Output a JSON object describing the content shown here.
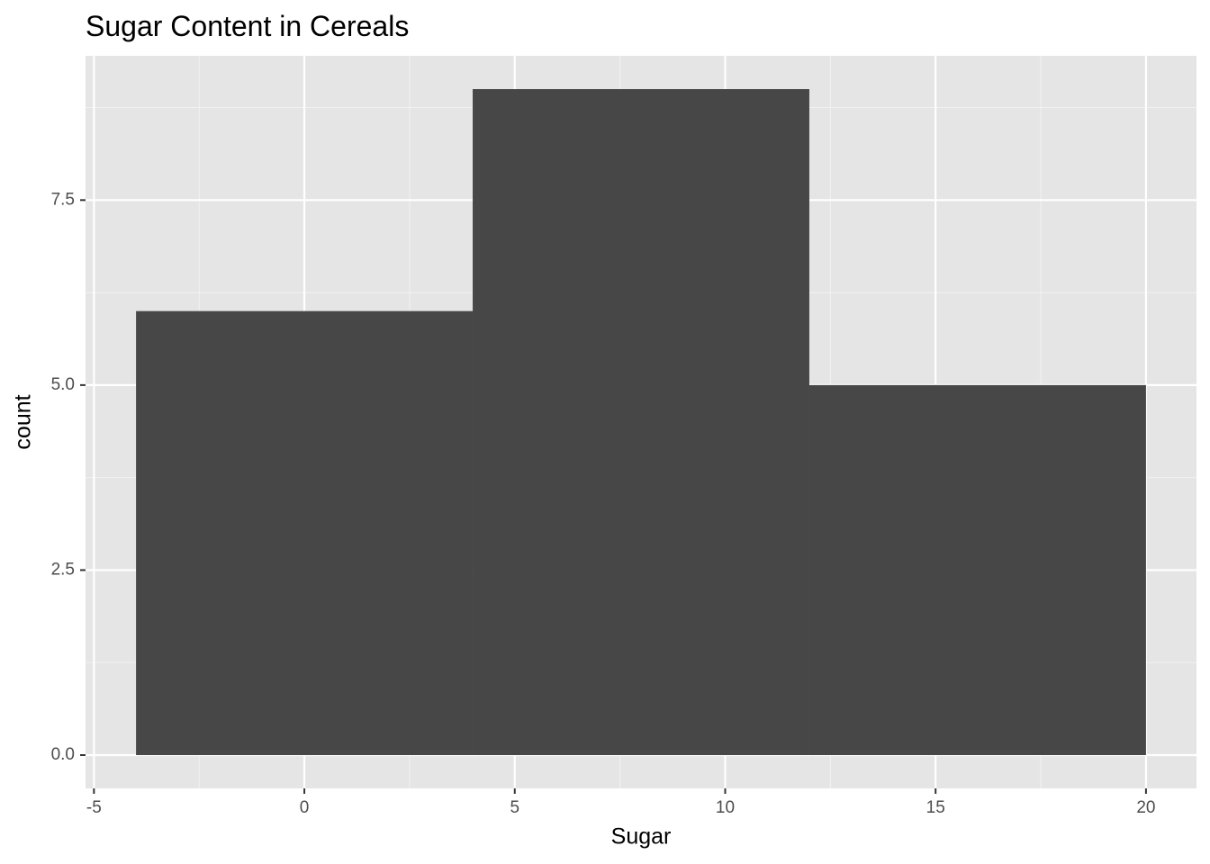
{
  "chart_data": {
    "type": "histogram",
    "title": "Sugar Content in Cereals",
    "x_label": "Sugar",
    "y_label": "count",
    "bins": [
      -4,
      4,
      12,
      20
    ],
    "values": [
      6,
      9,
      5
    ],
    "color": "#474747",
    "xlim": [
      -5.2,
      21.2
    ],
    "xticks": [
      -5,
      0,
      5,
      10,
      15,
      20
    ],
    "ylim": [
      -0.45,
      9.45
    ],
    "yticks": [
      {
        "value": 0,
        "label": "0.0"
      },
      2.5,
      {
        "value": 5,
        "label": "5.0"
      },
      7.5
    ],
    "grid": true
  }
}
